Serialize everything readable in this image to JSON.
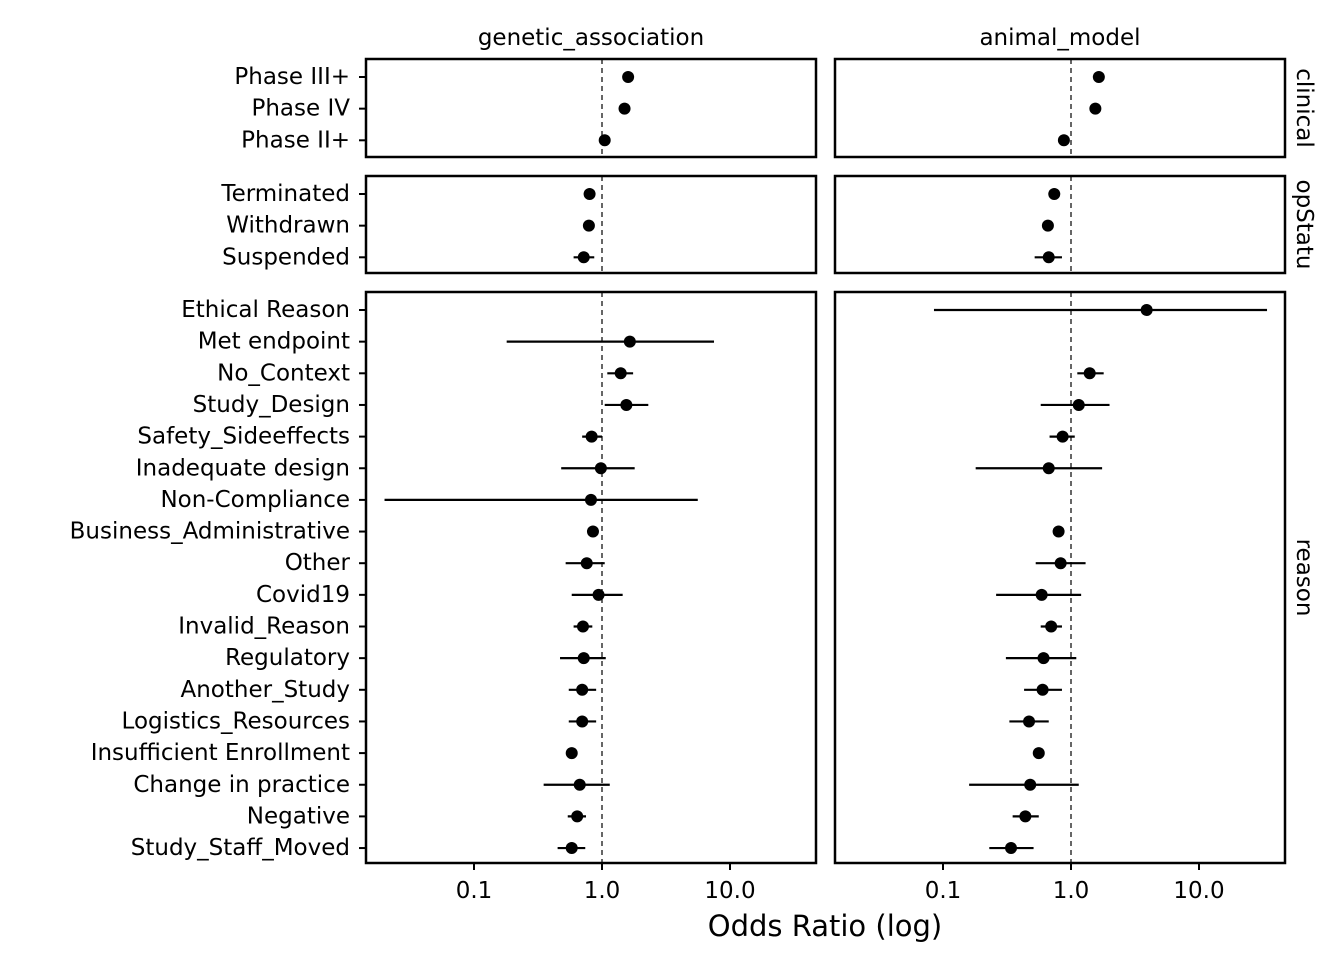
{
  "chart_data": {
    "type": "scatter",
    "subtype": "forest-plot-faceted",
    "xlabel": "Odds Ratio (log)",
    "x_scale": "log",
    "x_ticks": [
      "0.1",
      "1.0",
      "10.0"
    ],
    "xlim": [
      0.014,
      45
    ],
    "reference_line_x": 1.0,
    "columns": [
      "genetic_association",
      "animal_model"
    ],
    "rows": [
      {
        "strip": "clinical",
        "strip_shown": "clinical",
        "categories": [
          "Phase III+",
          "Phase IV",
          "Phase II+"
        ],
        "genetic_association": [
          {
            "or": 1.6,
            "lo": null,
            "hi": null
          },
          {
            "or": 1.5,
            "lo": null,
            "hi": null
          },
          {
            "or": 1.05,
            "lo": null,
            "hi": null
          }
        ],
        "animal_model": [
          {
            "or": 1.65,
            "lo": null,
            "hi": null
          },
          {
            "or": 1.55,
            "lo": null,
            "hi": null
          },
          {
            "or": 0.88,
            "lo": null,
            "hi": null
          }
        ]
      },
      {
        "strip": "stopStatus",
        "strip_shown": "opStatu",
        "categories": [
          "Terminated",
          "Withdrawn",
          "Suspended"
        ],
        "genetic_association": [
          {
            "or": 0.8,
            "lo": null,
            "hi": null
          },
          {
            "or": 0.79,
            "lo": null,
            "hi": null
          },
          {
            "or": 0.72,
            "lo": 0.6,
            "hi": 0.87
          }
        ],
        "animal_model": [
          {
            "or": 0.74,
            "lo": null,
            "hi": null
          },
          {
            "or": 0.66,
            "lo": null,
            "hi": null
          },
          {
            "or": 0.67,
            "lo": 0.52,
            "hi": 0.85
          }
        ]
      },
      {
        "strip": "reason",
        "strip_shown": "reason",
        "categories": [
          "Ethical Reason",
          "Met endpoint",
          "No_Context",
          "Study_Design",
          "Safety_Sideeffects",
          "Inadequate design",
          "Non-Compliance",
          "Business_Administrative",
          "Other",
          "Covid19",
          "Invalid_Reason",
          "Regulatory",
          "Another_Study",
          "Logistics_Resources",
          "Insufficient Enrollment",
          "Change in practice",
          "Negative",
          "Study_Staff_Moved"
        ],
        "genetic_association": [
          {
            "or": null,
            "lo": null,
            "hi": null
          },
          {
            "or": 1.65,
            "lo": 0.18,
            "hi": 7.5
          },
          {
            "or": 1.4,
            "lo": 1.1,
            "hi": 1.75
          },
          {
            "or": 1.55,
            "lo": 1.05,
            "hi": 2.3
          },
          {
            "or": 0.83,
            "lo": 0.7,
            "hi": 1.0
          },
          {
            "or": 0.98,
            "lo": 0.48,
            "hi": 1.8
          },
          {
            "or": 0.82,
            "lo": 0.02,
            "hi": 5.6
          },
          {
            "or": 0.85,
            "lo": null,
            "hi": null
          },
          {
            "or": 0.76,
            "lo": 0.52,
            "hi": 1.05
          },
          {
            "or": 0.94,
            "lo": 0.58,
            "hi": 1.45
          },
          {
            "or": 0.71,
            "lo": 0.6,
            "hi": 0.84
          },
          {
            "or": 0.72,
            "lo": 0.47,
            "hi": 1.07
          },
          {
            "or": 0.7,
            "lo": 0.55,
            "hi": 0.9
          },
          {
            "or": 0.7,
            "lo": 0.55,
            "hi": 0.9
          },
          {
            "or": 0.58,
            "lo": null,
            "hi": null
          },
          {
            "or": 0.67,
            "lo": 0.35,
            "hi": 1.15
          },
          {
            "or": 0.64,
            "lo": 0.54,
            "hi": 0.75
          },
          {
            "or": 0.58,
            "lo": 0.45,
            "hi": 0.74
          }
        ],
        "animal_model": [
          {
            "or": 3.9,
            "lo": 0.085,
            "hi": 34
          },
          {
            "or": null,
            "lo": null,
            "hi": null
          },
          {
            "or": 1.4,
            "lo": 1.12,
            "hi": 1.8
          },
          {
            "or": 1.15,
            "lo": 0.58,
            "hi": 2.0
          },
          {
            "or": 0.86,
            "lo": 0.68,
            "hi": 1.07
          },
          {
            "or": 0.67,
            "lo": 0.18,
            "hi": 1.75
          },
          {
            "or": null,
            "lo": null,
            "hi": null
          },
          {
            "or": 0.8,
            "lo": null,
            "hi": null
          },
          {
            "or": 0.83,
            "lo": 0.53,
            "hi": 1.3
          },
          {
            "or": 0.59,
            "lo": 0.26,
            "hi": 1.2
          },
          {
            "or": 0.7,
            "lo": 0.58,
            "hi": 0.85
          },
          {
            "or": 0.61,
            "lo": 0.31,
            "hi": 1.1
          },
          {
            "or": 0.6,
            "lo": 0.43,
            "hi": 0.85
          },
          {
            "or": 0.47,
            "lo": 0.33,
            "hi": 0.67
          },
          {
            "or": 0.56,
            "lo": null,
            "hi": null
          },
          {
            "or": 0.48,
            "lo": 0.16,
            "hi": 1.15
          },
          {
            "or": 0.44,
            "lo": 0.35,
            "hi": 0.56
          },
          {
            "or": 0.34,
            "lo": 0.23,
            "hi": 0.51
          }
        ]
      }
    ],
    "grid": false,
    "legend": "none"
  }
}
